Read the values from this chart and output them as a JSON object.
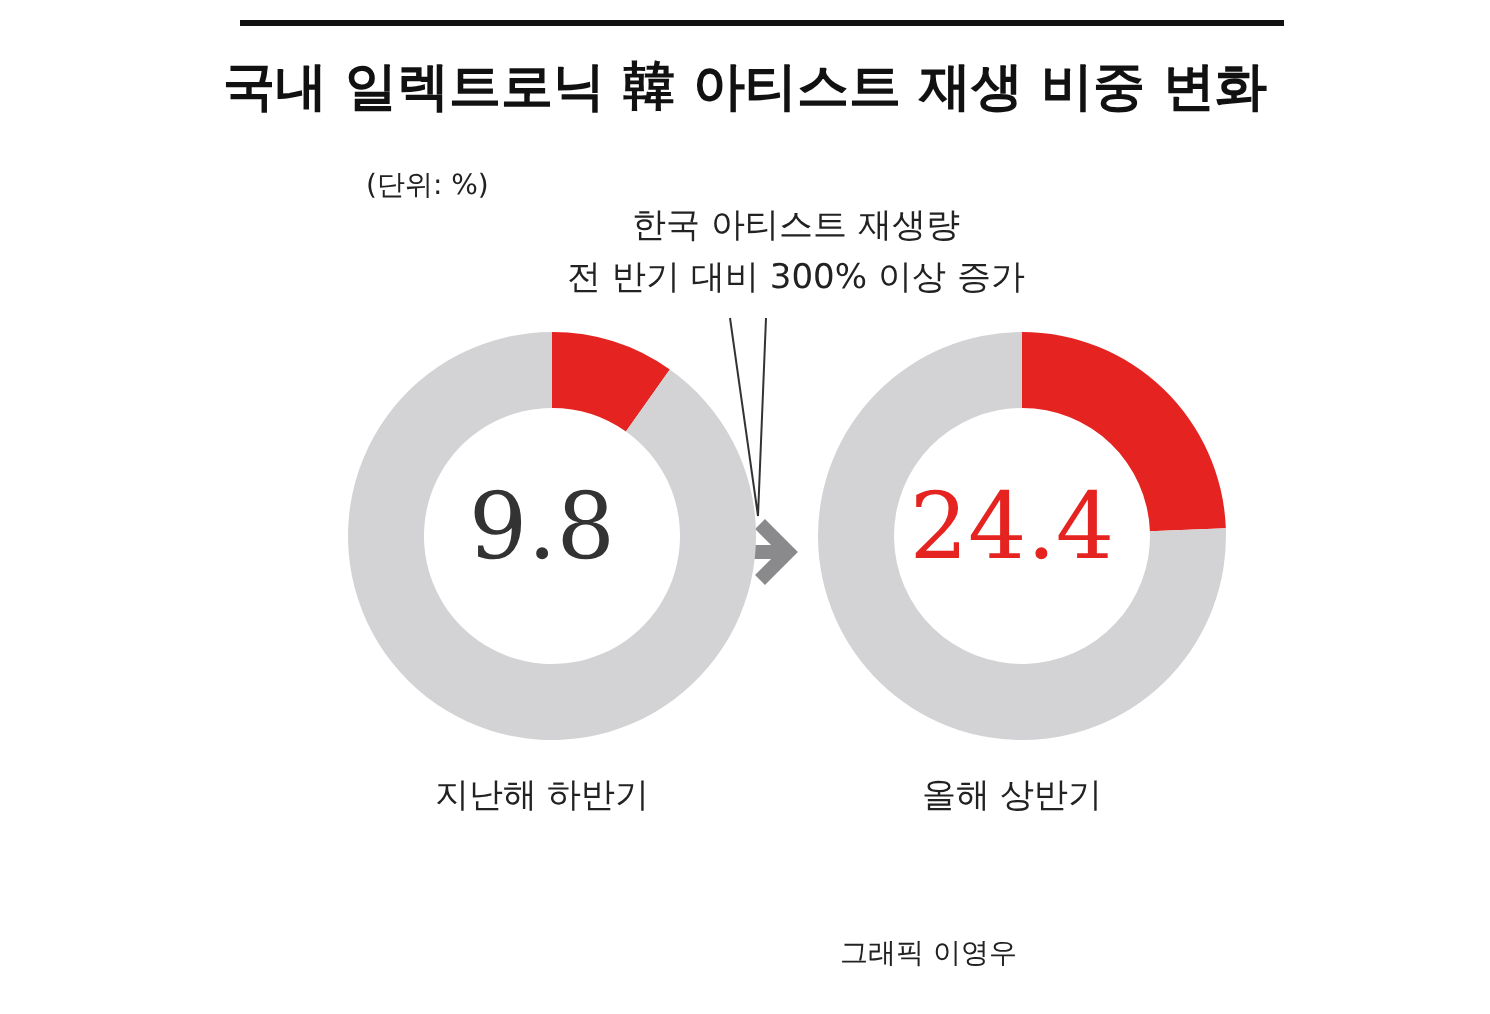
{
  "chart_data": [
    {
      "type": "donut",
      "title": "국내 일렉트로닉 韓 아티스트 재생 비중 변화",
      "subtitle": "(단위: %)",
      "annotations": [
        "9.8",
        "한국 아티스트 재생량\n전 반기 대비 300% 이상 증가",
        "그래픽 이영우"
      ],
      "categories": [
        null,
        null
      ],
      "values": [
        9.8,
        90.2
      ],
      "colors": [
        "#e52421",
        "#d3d3d5"
      ],
      "xlabel": "지난해 하반기"
    },
    {
      "type": "donut",
      "annotations": [
        "24.4"
      ],
      "categories": [
        null,
        null
      ],
      "values": [
        24.4,
        75.6
      ],
      "colors": [
        "#e52421",
        "#d3d3d5"
      ],
      "xlabel": "올해 상반기"
    }
  ]
}
